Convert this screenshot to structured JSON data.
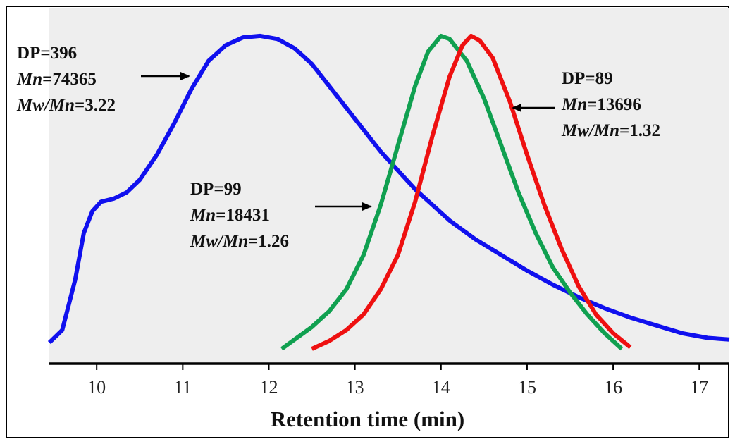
{
  "chart_data": {
    "type": "line",
    "title": "",
    "xlabel": "Retention time (min)",
    "ylabel": "",
    "xlim": [
      9.45,
      17.35
    ],
    "ylim": [
      0,
      1.02
    ],
    "x_ticks": [
      10,
      11,
      12,
      13,
      14,
      15,
      16,
      17
    ],
    "x_tick_labels": [
      "10",
      "11",
      "12",
      "13",
      "14",
      "15",
      "16",
      "17"
    ],
    "grid": false,
    "background": "#eeeeee",
    "series": [
      {
        "color": "#1010ee",
        "points": [
          [
            9.45,
            0.02
          ],
          [
            9.6,
            0.06
          ],
          [
            9.75,
            0.22
          ],
          [
            9.85,
            0.37
          ],
          [
            9.95,
            0.44
          ],
          [
            10.05,
            0.47
          ],
          [
            10.2,
            0.48
          ],
          [
            10.35,
            0.5
          ],
          [
            10.5,
            0.54
          ],
          [
            10.7,
            0.62
          ],
          [
            10.9,
            0.72
          ],
          [
            11.1,
            0.83
          ],
          [
            11.3,
            0.92
          ],
          [
            11.5,
            0.97
          ],
          [
            11.7,
            0.995
          ],
          [
            11.9,
            1.0
          ],
          [
            12.1,
            0.99
          ],
          [
            12.3,
            0.96
          ],
          [
            12.5,
            0.91
          ],
          [
            12.7,
            0.84
          ],
          [
            12.9,
            0.77
          ],
          [
            13.1,
            0.7
          ],
          [
            13.3,
            0.63
          ],
          [
            13.5,
            0.57
          ],
          [
            13.7,
            0.51
          ],
          [
            13.9,
            0.46
          ],
          [
            14.1,
            0.41
          ],
          [
            14.4,
            0.35
          ],
          [
            14.7,
            0.3
          ],
          [
            15.0,
            0.25
          ],
          [
            15.3,
            0.205
          ],
          [
            15.6,
            0.165
          ],
          [
            15.9,
            0.13
          ],
          [
            16.2,
            0.1
          ],
          [
            16.5,
            0.075
          ],
          [
            16.8,
            0.05
          ],
          [
            17.1,
            0.035
          ],
          [
            17.35,
            0.03
          ]
        ]
      },
      {
        "color": "#10a050",
        "points": [
          [
            12.15,
            0.0
          ],
          [
            12.3,
            0.03
          ],
          [
            12.5,
            0.07
          ],
          [
            12.7,
            0.12
          ],
          [
            12.9,
            0.19
          ],
          [
            13.1,
            0.3
          ],
          [
            13.3,
            0.46
          ],
          [
            13.5,
            0.65
          ],
          [
            13.7,
            0.84
          ],
          [
            13.85,
            0.95
          ],
          [
            14.0,
            1.0
          ],
          [
            14.1,
            0.99
          ],
          [
            14.3,
            0.92
          ],
          [
            14.5,
            0.8
          ],
          [
            14.7,
            0.65
          ],
          [
            14.9,
            0.5
          ],
          [
            15.1,
            0.37
          ],
          [
            15.3,
            0.26
          ],
          [
            15.5,
            0.18
          ],
          [
            15.7,
            0.11
          ],
          [
            15.9,
            0.05
          ],
          [
            16.1,
            0.0
          ]
        ]
      },
      {
        "color": "#ee1010",
        "points": [
          [
            12.5,
            0.0
          ],
          [
            12.7,
            0.025
          ],
          [
            12.9,
            0.06
          ],
          [
            13.1,
            0.11
          ],
          [
            13.3,
            0.19
          ],
          [
            13.5,
            0.3
          ],
          [
            13.7,
            0.47
          ],
          [
            13.9,
            0.68
          ],
          [
            14.1,
            0.87
          ],
          [
            14.25,
            0.97
          ],
          [
            14.35,
            1.0
          ],
          [
            14.45,
            0.985
          ],
          [
            14.6,
            0.93
          ],
          [
            14.8,
            0.79
          ],
          [
            15.0,
            0.62
          ],
          [
            15.2,
            0.46
          ],
          [
            15.4,
            0.32
          ],
          [
            15.6,
            0.2
          ],
          [
            15.8,
            0.11
          ],
          [
            16.0,
            0.05
          ],
          [
            16.2,
            0.005
          ]
        ]
      }
    ],
    "annotations": [
      {
        "lines": [
          "DP=396",
          "Mn=74365",
          "Mw/Mn=3.22"
        ],
        "arrow_points_at": "blue peak",
        "direction": "right"
      },
      {
        "lines": [
          "DP=99",
          "Mn=18431",
          "Mw/Mn=1.26"
        ],
        "arrow_points_at": "green curve",
        "direction": "right"
      },
      {
        "lines": [
          "DP=89",
          "Mn=13696",
          "Mw/Mn=1.32"
        ],
        "arrow_points_at": "red curve",
        "direction": "left"
      }
    ]
  }
}
